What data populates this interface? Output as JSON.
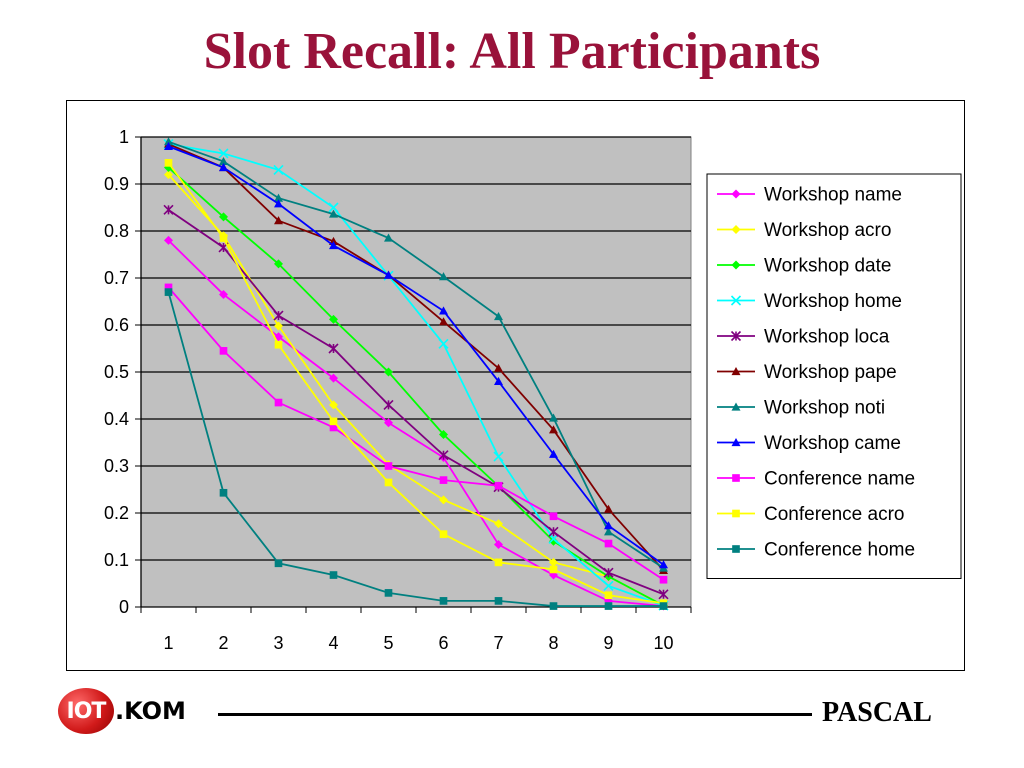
{
  "slide": {
    "title": "Slot Recall: All Participants",
    "logo_mark": "IOT",
    "logo_text": ".KOM",
    "footer_right": "PASCAL"
  },
  "chart_data": {
    "type": "line",
    "x": [
      1,
      2,
      3,
      4,
      5,
      6,
      7,
      8,
      9,
      10
    ],
    "ylim": [
      0,
      1
    ],
    "y_ticks": [
      "0",
      "0.1",
      "0.2",
      "0.3",
      "0.4",
      "0.5",
      "0.6",
      "0.7",
      "0.8",
      "0.9",
      "1"
    ],
    "x_ticks": [
      "1",
      "2",
      "3",
      "4",
      "5",
      "6",
      "7",
      "8",
      "9",
      "10"
    ],
    "grid": "horizontal",
    "plot_background": "#c0c0c0",
    "legend_position": "right",
    "series": [
      {
        "name": "Workshop name",
        "color": "#ff00ff",
        "marker": "diamond",
        "values": [
          0.78,
          0.665,
          0.575,
          0.487,
          0.392,
          0.318,
          0.133,
          0.068,
          0.013,
          0.002
        ]
      },
      {
        "name": "Workshop acro",
        "color": "#ffff00",
        "marker": "diamond",
        "values": [
          0.92,
          0.79,
          0.598,
          0.43,
          0.303,
          0.228,
          0.177,
          0.095,
          0.065,
          0.003
        ]
      },
      {
        "name": "Workshop date",
        "color": "#00ff00",
        "marker": "diamond",
        "values": [
          0.935,
          0.83,
          0.73,
          0.612,
          0.5,
          0.367,
          0.257,
          0.14,
          0.065,
          0.003
        ]
      },
      {
        "name": "Workshop home",
        "color": "#00ffff",
        "marker": "x",
        "values": [
          0.985,
          0.965,
          0.93,
          0.85,
          0.705,
          0.56,
          0.32,
          0.145,
          0.045,
          0.003
        ]
      },
      {
        "name": "Workshop loca",
        "color": "#800080",
        "marker": "asterisk",
        "values": [
          0.845,
          0.765,
          0.62,
          0.55,
          0.43,
          0.323,
          0.255,
          0.16,
          0.073,
          0.027
        ]
      },
      {
        "name": "Workshop pape",
        "color": "#800000",
        "marker": "triangle",
        "values": [
          0.985,
          0.935,
          0.822,
          0.778,
          0.706,
          0.607,
          0.508,
          0.377,
          0.208,
          0.078
        ]
      },
      {
        "name": "Workshop noti",
        "color": "#008080",
        "marker": "triangle",
        "values": [
          0.99,
          0.948,
          0.87,
          0.836,
          0.785,
          0.703,
          0.618,
          0.402,
          0.16,
          0.083
        ]
      },
      {
        "name": "Workshop came",
        "color": "#0000ff",
        "marker": "triangle",
        "values": [
          0.98,
          0.935,
          0.858,
          0.769,
          0.706,
          0.63,
          0.48,
          0.325,
          0.173,
          0.09
        ]
      },
      {
        "name": "Conference name",
        "color": "#ff00ff",
        "marker": "square",
        "values": [
          0.68,
          0.545,
          0.435,
          0.382,
          0.3,
          0.27,
          0.258,
          0.193,
          0.135,
          0.058
        ]
      },
      {
        "name": "Conference acro",
        "color": "#ffff00",
        "marker": "square",
        "values": [
          0.945,
          0.785,
          0.558,
          0.395,
          0.265,
          0.155,
          0.095,
          0.08,
          0.025,
          0.008
        ]
      },
      {
        "name": "Conference home",
        "color": "#008080",
        "marker": "square",
        "values": [
          0.67,
          0.243,
          0.093,
          0.068,
          0.03,
          0.013,
          0.013,
          0.002,
          0.002,
          0.002
        ]
      }
    ]
  }
}
